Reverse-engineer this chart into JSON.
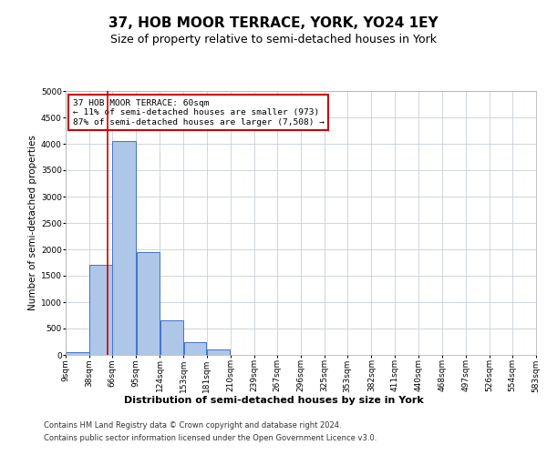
{
  "title": "37, HOB MOOR TERRACE, YORK, YO24 1EY",
  "subtitle": "Size of property relative to semi-detached houses in York",
  "xlabel": "Distribution of semi-detached houses by size in York",
  "ylabel": "Number of semi-detached properties",
  "footer_line1": "Contains HM Land Registry data © Crown copyright and database right 2024.",
  "footer_line2": "Contains public sector information licensed under the Open Government Licence v3.0.",
  "annotation_title": "37 HOB MOOR TERRACE: 60sqm",
  "annotation_line1": "← 11% of semi-detached houses are smaller (973)",
  "annotation_line2": "87% of semi-detached houses are larger (7,508) →",
  "bar_left_edges": [
    9,
    38,
    66,
    95,
    124,
    153,
    181,
    210,
    239,
    267,
    296,
    325,
    353,
    382,
    411,
    440,
    468,
    497,
    526,
    554
  ],
  "bar_widths": [
    29,
    28,
    29,
    29,
    29,
    28,
    29,
    29,
    28,
    29,
    29,
    28,
    29,
    29,
    29,
    28,
    29,
    29,
    28,
    29
  ],
  "bar_heights": [
    50,
    1700,
    4050,
    1950,
    650,
    240,
    100,
    0,
    0,
    0,
    0,
    0,
    0,
    0,
    0,
    0,
    0,
    0,
    0,
    0
  ],
  "bar_color": "#aec6e8",
  "bar_edge_color": "#4472c4",
  "red_line_x": 60,
  "ylim": [
    0,
    5000
  ],
  "yticks": [
    0,
    500,
    1000,
    1500,
    2000,
    2500,
    3000,
    3500,
    4000,
    4500,
    5000
  ],
  "xtick_labels": [
    "9sqm",
    "38sqm",
    "66sqm",
    "95sqm",
    "124sqm",
    "153sqm",
    "181sqm",
    "210sqm",
    "239sqm",
    "267sqm",
    "296sqm",
    "325sqm",
    "353sqm",
    "382sqm",
    "411sqm",
    "440sqm",
    "468sqm",
    "497sqm",
    "526sqm",
    "554sqm",
    "583sqm"
  ],
  "grid_color": "#c8d0dc",
  "background_color": "#ffffff",
  "title_fontsize": 11,
  "subtitle_fontsize": 9,
  "ylabel_fontsize": 7.5,
  "xlabel_fontsize": 8,
  "annotation_fontsize": 6.8,
  "annotation_box_color": "#ffffff",
  "annotation_box_edge_color": "#cc0000",
  "red_line_color": "#cc0000",
  "footer_fontsize": 6,
  "tick_fontsize": 6.5
}
